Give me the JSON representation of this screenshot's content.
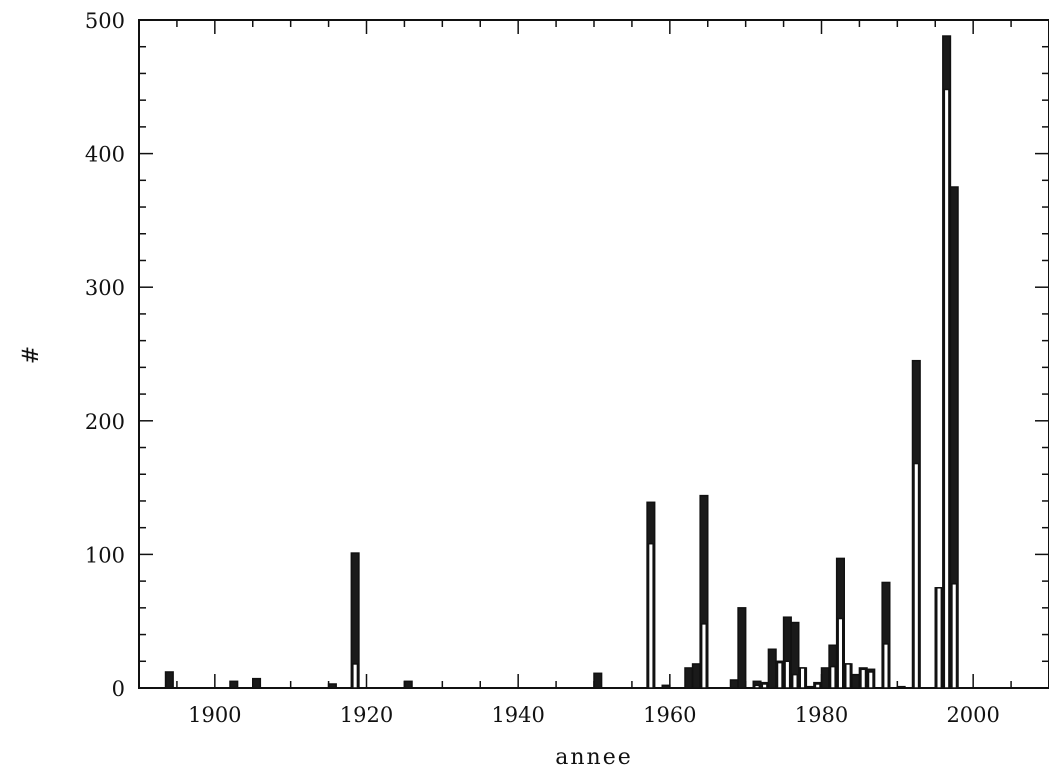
{
  "chart_data": {
    "type": "bar",
    "title": "",
    "xlabel": "annee",
    "ylabel": "#",
    "xlim": [
      1890,
      2010
    ],
    "ylim": [
      0,
      500
    ],
    "x_ticks": [
      1900,
      1920,
      1940,
      1960,
      1980,
      2000
    ],
    "y_ticks": [
      0,
      100,
      200,
      300,
      400,
      500
    ],
    "grid": false,
    "legend": "none",
    "bin_width": 1,
    "series": [
      {
        "style": "outline",
        "points": [
          {
            "x": 1893.5,
            "y": 0
          },
          {
            "x": 1902,
            "y": 0
          },
          {
            "x": 1905,
            "y": 0
          },
          {
            "x": 1915,
            "y": 0
          },
          {
            "x": 1918,
            "y": 18
          },
          {
            "x": 1925,
            "y": 0
          },
          {
            "x": 1950,
            "y": 0
          },
          {
            "x": 1957,
            "y": 108
          },
          {
            "x": 1959,
            "y": 0
          },
          {
            "x": 1962,
            "y": 0
          },
          {
            "x": 1963,
            "y": 0
          },
          {
            "x": 1964,
            "y": 48
          },
          {
            "x": 1968,
            "y": 0
          },
          {
            "x": 1969,
            "y": 0
          },
          {
            "x": 1971,
            "y": 2
          },
          {
            "x": 1972,
            "y": 3
          },
          {
            "x": 1973,
            "y": 0
          },
          {
            "x": 1974,
            "y": 19
          },
          {
            "x": 1975,
            "y": 20
          },
          {
            "x": 1976,
            "y": 10
          },
          {
            "x": 1977,
            "y": 15
          },
          {
            "x": 1978,
            "y": 0
          },
          {
            "x": 1979,
            "y": 3
          },
          {
            "x": 1980,
            "y": 0
          },
          {
            "x": 1981,
            "y": 16
          },
          {
            "x": 1982,
            "y": 52
          },
          {
            "x": 1983,
            "y": 18
          },
          {
            "x": 1984,
            "y": 0
          },
          {
            "x": 1985,
            "y": 14
          },
          {
            "x": 1986,
            "y": 12
          },
          {
            "x": 1988,
            "y": 33
          },
          {
            "x": 1990,
            "y": 0
          },
          {
            "x": 1992,
            "y": 168
          },
          {
            "x": 1995,
            "y": 75
          },
          {
            "x": 1996,
            "y": 448
          },
          {
            "x": 1997,
            "y": 78
          }
        ]
      },
      {
        "style": "filled",
        "points": [
          {
            "x": 1893.5,
            "y": 12
          },
          {
            "x": 1902,
            "y": 5
          },
          {
            "x": 1905,
            "y": 7
          },
          {
            "x": 1915,
            "y": 3
          },
          {
            "x": 1918,
            "y": 101
          },
          {
            "x": 1925,
            "y": 5
          },
          {
            "x": 1950,
            "y": 11
          },
          {
            "x": 1957,
            "y": 139
          },
          {
            "x": 1959,
            "y": 2
          },
          {
            "x": 1962,
            "y": 15
          },
          {
            "x": 1963,
            "y": 18
          },
          {
            "x": 1964,
            "y": 144
          },
          {
            "x": 1968,
            "y": 6
          },
          {
            "x": 1969,
            "y": 60
          },
          {
            "x": 1971,
            "y": 5
          },
          {
            "x": 1972,
            "y": 4
          },
          {
            "x": 1973,
            "y": 29
          },
          {
            "x": 1974,
            "y": 20
          },
          {
            "x": 1975,
            "y": 53
          },
          {
            "x": 1976,
            "y": 49
          },
          {
            "x": 1977,
            "y": 15
          },
          {
            "x": 1978,
            "y": 1
          },
          {
            "x": 1979,
            "y": 4
          },
          {
            "x": 1980,
            "y": 15
          },
          {
            "x": 1981,
            "y": 32
          },
          {
            "x": 1982,
            "y": 97
          },
          {
            "x": 1983,
            "y": 18
          },
          {
            "x": 1984,
            "y": 10
          },
          {
            "x": 1985,
            "y": 15
          },
          {
            "x": 1986,
            "y": 14
          },
          {
            "x": 1988,
            "y": 79
          },
          {
            "x": 1990,
            "y": 1
          },
          {
            "x": 1992,
            "y": 245
          },
          {
            "x": 1995,
            "y": 75
          },
          {
            "x": 1996,
            "y": 488
          },
          {
            "x": 1997,
            "y": 375
          }
        ]
      }
    ]
  }
}
